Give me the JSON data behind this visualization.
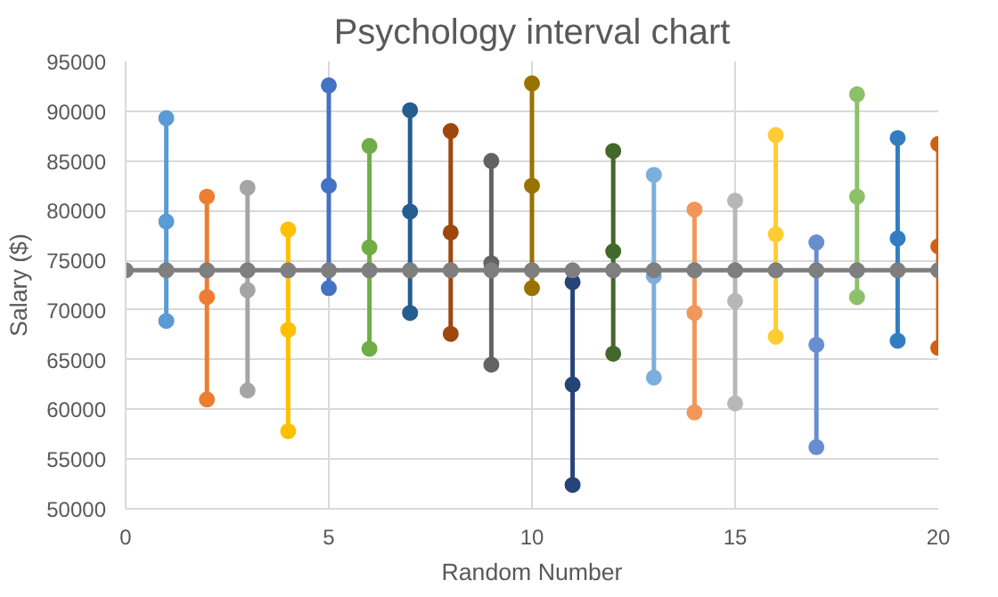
{
  "chart_data": {
    "type": "line",
    "title": "Psychology interval chart",
    "xlabel": "Random Number",
    "ylabel": "Salary ($)",
    "xlim": [
      0,
      20
    ],
    "xticks": [
      0,
      5,
      10,
      15,
      20
    ],
    "ylim": [
      50000,
      95000
    ],
    "yticks": [
      50000,
      55000,
      60000,
      65000,
      70000,
      75000,
      80000,
      85000,
      90000,
      95000
    ],
    "grid": true,
    "marker": "circle",
    "line_style": "solid",
    "series": [
      {
        "color": "#5b9bd5",
        "x": [
          1,
          1,
          1
        ],
        "values": [
          89300,
          78900,
          68900
        ]
      },
      {
        "color": "#ed7d31",
        "x": [
          2,
          2,
          2
        ],
        "values": [
          81400,
          71300,
          61000
        ]
      },
      {
        "color": "#a5a5a5",
        "x": [
          3,
          3,
          3
        ],
        "values": [
          82300,
          72000,
          61900
        ]
      },
      {
        "color": "#ffc000",
        "x": [
          4,
          4,
          4
        ],
        "values": [
          78100,
          68000,
          57800
        ]
      },
      {
        "color": "#4472c4",
        "x": [
          5,
          5,
          5
        ],
        "values": [
          92600,
          82500,
          72200
        ]
      },
      {
        "color": "#70ad47",
        "x": [
          6,
          6,
          6
        ],
        "values": [
          86500,
          76300,
          66100
        ]
      },
      {
        "color": "#255e91",
        "x": [
          7,
          7,
          7
        ],
        "values": [
          90100,
          79900,
          69700
        ]
      },
      {
        "color": "#9e480e",
        "x": [
          8,
          8,
          8
        ],
        "values": [
          88000,
          77800,
          67600
        ]
      },
      {
        "color": "#636363",
        "x": [
          9,
          9,
          9
        ],
        "values": [
          85000,
          74700,
          64500
        ]
      },
      {
        "color": "#997300",
        "x": [
          10,
          10,
          10
        ],
        "values": [
          92800,
          82500,
          72200
        ]
      },
      {
        "color": "#264478",
        "x": [
          11,
          11,
          11
        ],
        "values": [
          72800,
          62500,
          52400
        ]
      },
      {
        "color": "#43682b",
        "x": [
          12,
          12,
          12
        ],
        "values": [
          86000,
          75900,
          65600
        ]
      },
      {
        "color": "#7cafdd",
        "x": [
          13,
          13,
          13
        ],
        "values": [
          83600,
          73400,
          63200
        ]
      },
      {
        "color": "#f1975a",
        "x": [
          14,
          14,
          14
        ],
        "values": [
          80100,
          69700,
          59700
        ]
      },
      {
        "color": "#b7b7b7",
        "x": [
          15,
          15,
          15
        ],
        "values": [
          81000,
          70900,
          60600
        ]
      },
      {
        "color": "#ffcd33",
        "x": [
          16,
          16,
          16
        ],
        "values": [
          87600,
          77600,
          67300
        ]
      },
      {
        "color": "#698ed0",
        "x": [
          17,
          17,
          17
        ],
        "values": [
          76800,
          66500,
          56200
        ]
      },
      {
        "color": "#8cc168",
        "x": [
          18,
          18,
          18
        ],
        "values": [
          91700,
          81400,
          71300
        ]
      },
      {
        "color": "#327dc2",
        "x": [
          19,
          19,
          19
        ],
        "values": [
          87300,
          77200,
          66900
        ]
      },
      {
        "color": "#d26012",
        "x": [
          20,
          20,
          20
        ],
        "values": [
          86700,
          76400,
          66200
        ]
      },
      {
        "color": "#7f7f7f",
        "x": [
          0,
          1,
          2,
          3,
          4,
          5,
          6,
          7,
          8,
          9,
          10,
          11,
          12,
          13,
          14,
          15,
          16,
          17,
          18,
          19,
          20
        ],
        "values": [
          74000,
          74000,
          74000,
          74000,
          74000,
          74000,
          74000,
          74000,
          74000,
          74000,
          74000,
          74000,
          74000,
          74000,
          74000,
          74000,
          74000,
          74000,
          74000,
          74000,
          74000
        ]
      }
    ]
  }
}
